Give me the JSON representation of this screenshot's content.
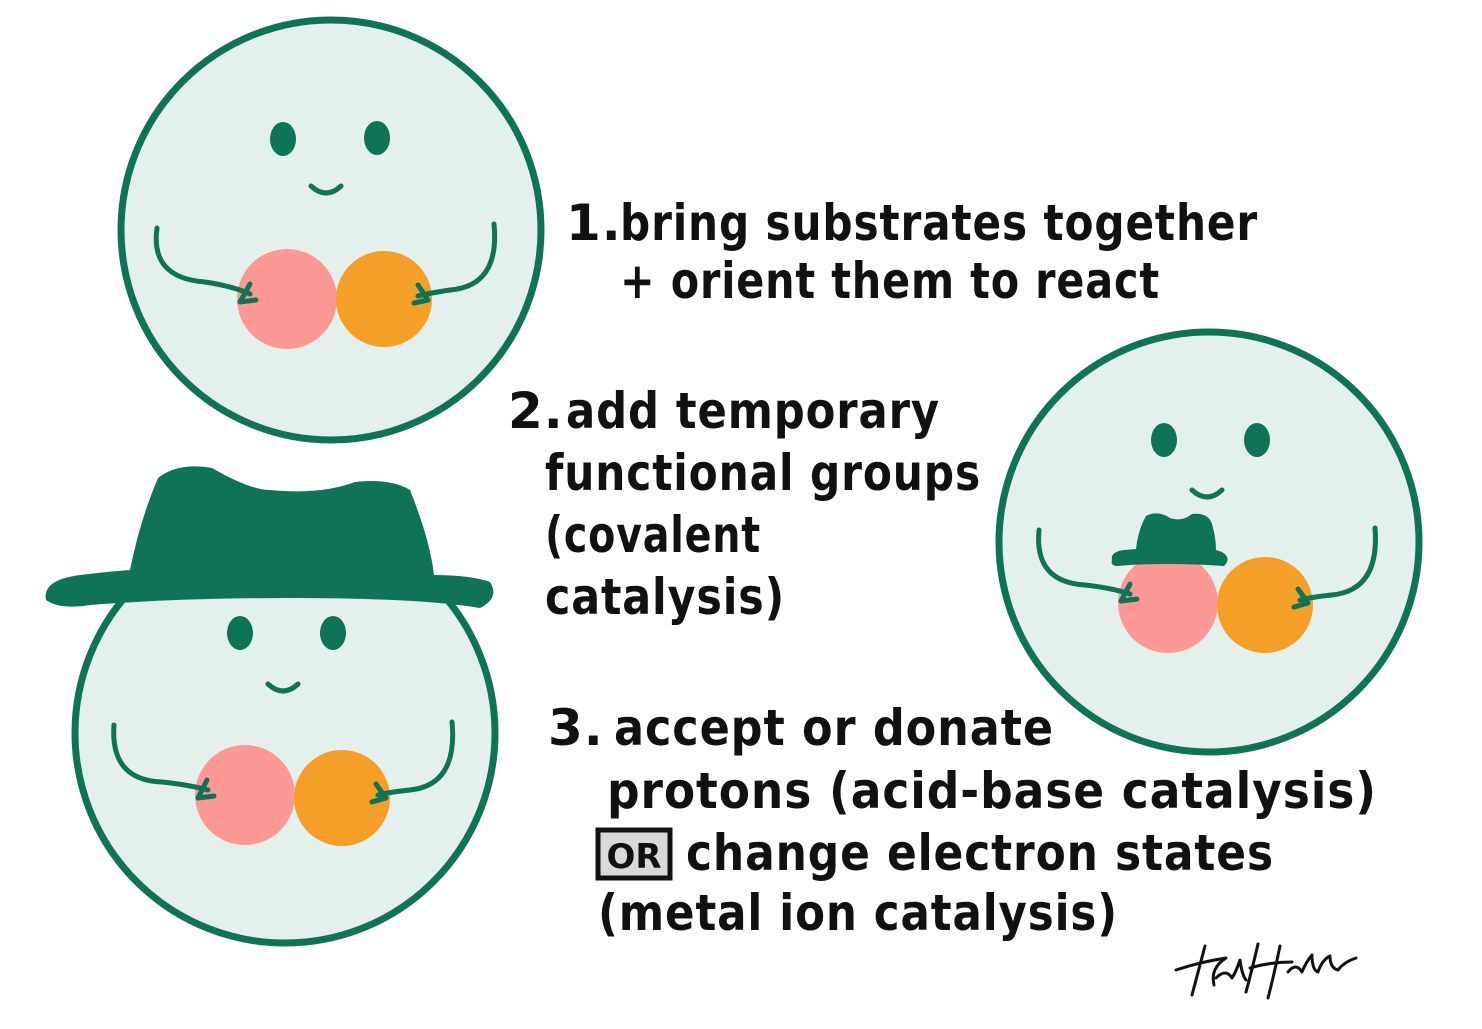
{
  "colors": {
    "face_fill": "#e3f0ec",
    "face_stroke": "#0e7357",
    "feature": "#0e7357",
    "substrate_pink": "#fc9995",
    "substrate_orange": "#f4a028",
    "text": "#111111"
  },
  "steps": [
    {
      "number": "1.",
      "lines": [
        "bring substrates together",
        "+ orient them to react"
      ]
    },
    {
      "number": "2.",
      "lines": [
        "add temporary",
        "functional groups",
        "(covalent",
        "catalysis)"
      ]
    },
    {
      "number": "3.",
      "lines": [
        "accept or donate",
        "protons (acid-base catalysis)",
        "change electron states",
        "(metal ion catalysis)"
      ],
      "or_label": "OR"
    }
  ],
  "illustrations": [
    {
      "name": "enzyme-face-holding-substrates",
      "icon": "smiling-enzyme"
    },
    {
      "name": "enzyme-face-with-hat",
      "icon": "smiling-enzyme-hat"
    },
    {
      "name": "enzyme-face-substrate-with-hat",
      "icon": "smiling-enzyme-substrate-hat"
    }
  ],
  "signature": "Kal Holden"
}
